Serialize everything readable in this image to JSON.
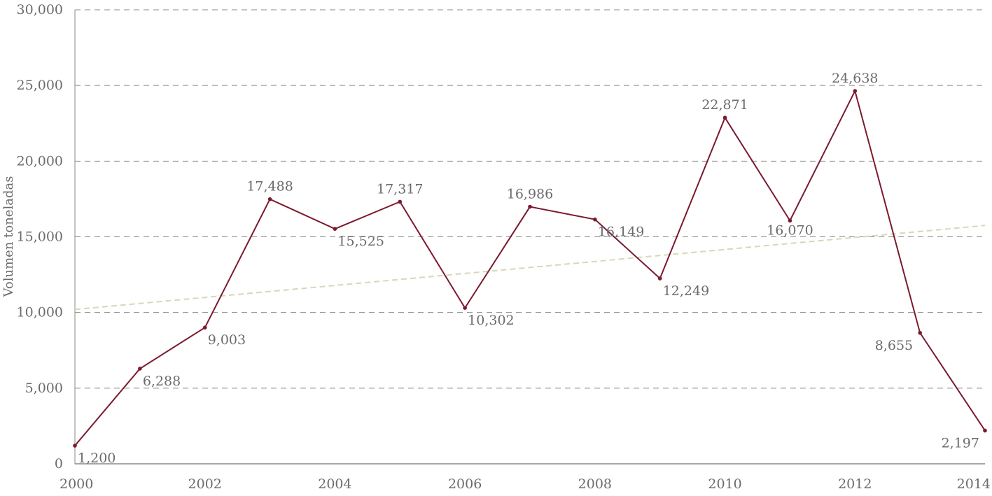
{
  "chart_data": {
    "type": "line",
    "title": "",
    "xlabel": "",
    "ylabel": "Volumen toneladas",
    "xlim": [
      2000,
      2014
    ],
    "ylim": [
      0,
      30000
    ],
    "yticks": [
      0,
      5000,
      10000,
      15000,
      20000,
      25000,
      30000
    ],
    "ytick_labels": [
      "0",
      "5,000",
      "10,000",
      "15,000",
      "20,000",
      "25,000",
      "30,000"
    ],
    "xticks": [
      2000,
      2002,
      2004,
      2006,
      2008,
      2010,
      2012,
      2014
    ],
    "xtick_labels": [
      "2000",
      "2002",
      "2004",
      "2006",
      "2008",
      "2010",
      "2012",
      "2014"
    ],
    "grid": "horizontal dashed",
    "series": [
      {
        "color": "#7b1a2e",
        "x": [
          2000,
          2001,
          2002,
          2003,
          2004,
          2005,
          2006,
          2007,
          2008,
          2009,
          2010,
          2011,
          2012,
          2013,
          2014
        ],
        "values": [
          1200,
          6288,
          9003,
          17488,
          15525,
          17317,
          10302,
          16986,
          16149,
          12249,
          22871,
          16070,
          24638,
          8655,
          2197
        ],
        "data_labels": [
          "1,200",
          "6,288",
          "9,003",
          "17,488",
          "15,525",
          "17,317",
          "10,302",
          "16,986",
          "16,149",
          "12,249",
          "22,871",
          "16,070",
          "24,638",
          "8,655",
          "2,197"
        ]
      }
    ],
    "trendline": {
      "style": "dashed",
      "color": "#d3d9b8",
      "x": [
        2000,
        2014
      ],
      "values": [
        10200,
        15750
      ]
    }
  }
}
